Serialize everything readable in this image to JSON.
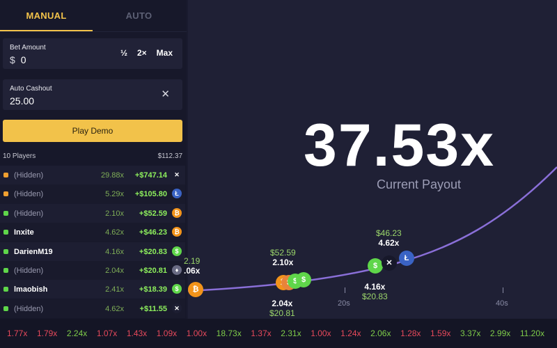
{
  "tabs": {
    "manual": "MANUAL",
    "auto": "AUTO"
  },
  "bet": {
    "label": "Bet Amount",
    "currency": "$",
    "value": "0",
    "half": "½",
    "double": "2×",
    "max": "Max"
  },
  "cashout": {
    "label": "Auto Cashout",
    "value": "25.00",
    "clear": "✕"
  },
  "play_button": "Play Demo",
  "players_header": {
    "count": "10 Players",
    "total": "$112.37"
  },
  "players": [
    {
      "name": "(Hidden)",
      "mult": "29.88x",
      "amount": "+$747.14",
      "coin": "✕",
      "dot": "#f0a030",
      "coin_bg": "#1d1e32",
      "bold": false
    },
    {
      "name": "(Hidden)",
      "mult": "5.29x",
      "amount": "+$105.80",
      "coin": "Ł",
      "dot": "#f0a030",
      "coin_bg": "#3a63c4",
      "bold": false
    },
    {
      "name": "(Hidden)",
      "mult": "2.10x",
      "amount": "+$52.59",
      "coin": "₿",
      "dot": "#5fd64a",
      "coin_bg": "#f2931a",
      "bold": false
    },
    {
      "name": "Inxite",
      "mult": "4.62x",
      "amount": "+$46.23",
      "coin": "₿",
      "dot": "#5fd64a",
      "coin_bg": "#f2931a",
      "bold": true
    },
    {
      "name": "DarienM19",
      "mult": "4.16x",
      "amount": "+$20.83",
      "coin": "$",
      "dot": "#5fd64a",
      "coin_bg": "#5fd64a",
      "bold": true
    },
    {
      "name": "(Hidden)",
      "mult": "2.04x",
      "amount": "+$20.81",
      "coin": "♦",
      "dot": "#5fd64a",
      "coin_bg": "#6a6b84",
      "bold": false
    },
    {
      "name": "lmaobish",
      "mult": "2.41x",
      "amount": "+$18.39",
      "coin": "$",
      "dot": "#5fd64a",
      "coin_bg": "#5fd64a",
      "bold": true
    },
    {
      "name": "(Hidden)",
      "mult": "4.62x",
      "amount": "+$11.55",
      "coin": "✕",
      "dot": "#5fd64a",
      "coin_bg": "#1d1e32",
      "bold": false
    }
  ],
  "payout": {
    "value": "37.53x",
    "label": "Current Payout"
  },
  "axis": {
    "t20": "20s",
    "t40": "40s"
  },
  "annotations": {
    "a1": {
      "amount": "$52.59",
      "mult": "2.10x"
    },
    "a2": {
      "mult": "2.04x",
      "amount": "$20.81"
    },
    "a3": {
      "amount": "$46.23",
      "mult": "4.62x"
    },
    "a4": {
      "mult": "4.16x",
      "amount": "$20.83"
    },
    "a5": {
      "amount": "2.19",
      "mult": ".06x"
    }
  },
  "history": [
    {
      "v": "1.77x",
      "c": "red"
    },
    {
      "v": "1.79x",
      "c": "red"
    },
    {
      "v": "2.24x",
      "c": "green"
    },
    {
      "v": "1.07x",
      "c": "red"
    },
    {
      "v": "1.43x",
      "c": "red"
    },
    {
      "v": "1.09x",
      "c": "red"
    },
    {
      "v": "1.00x",
      "c": "red"
    },
    {
      "v": "18.73x",
      "c": "green"
    },
    {
      "v": "1.37x",
      "c": "red"
    },
    {
      "v": "2.31x",
      "c": "green"
    },
    {
      "v": "1.00x",
      "c": "red"
    },
    {
      "v": "1.24x",
      "c": "red"
    },
    {
      "v": "2.06x",
      "c": "green"
    },
    {
      "v": "1.28x",
      "c": "red"
    },
    {
      "v": "1.59x",
      "c": "red"
    },
    {
      "v": "3.37x",
      "c": "green"
    },
    {
      "v": "2.99x",
      "c": "green"
    },
    {
      "v": "11.20x",
      "c": "green"
    }
  ],
  "colors": {
    "accent": "#f2c24a",
    "win": "#8ef05d",
    "loss": "#e8495b",
    "curve": "#8a6fd8"
  }
}
